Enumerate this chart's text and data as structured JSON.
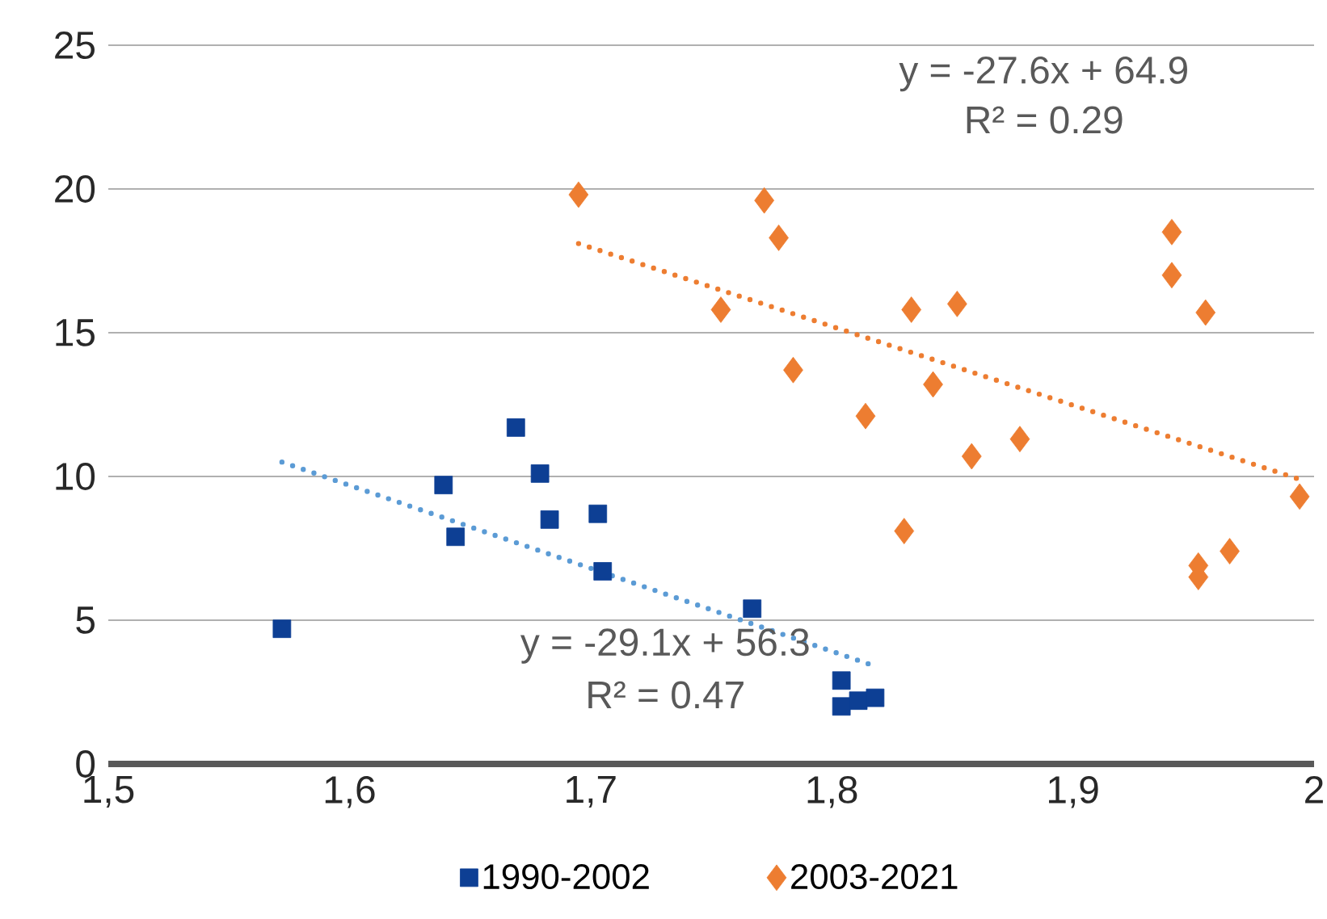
{
  "chart_data": {
    "type": "scatter",
    "xlim": [
      1.5,
      2
    ],
    "ylim": [
      0,
      25
    ],
    "xticks": [
      {
        "value": 1.5,
        "label": "1,5"
      },
      {
        "value": 1.6,
        "label": "1,6"
      },
      {
        "value": 1.7,
        "label": "1,7"
      },
      {
        "value": 1.8,
        "label": "1,8"
      },
      {
        "value": 1.9,
        "label": "1,9"
      },
      2
    ],
    "yticks": [
      0,
      5,
      10,
      15,
      20,
      25
    ],
    "grid": "y",
    "legend": "bottom",
    "series": [
      {
        "name": "1990-2002",
        "color": "#0d3f94",
        "marker": "square",
        "x": [
          1.572,
          1.639,
          1.644,
          1.669,
          1.679,
          1.683,
          1.703,
          1.705,
          1.767,
          1.804,
          1.804,
          1.811,
          1.818
        ],
        "values": [
          4.7,
          9.7,
          7.9,
          11.7,
          10.1,
          8.5,
          8.7,
          6.7,
          5.4,
          2.9,
          2.0,
          2.2,
          2.3
        ]
      },
      {
        "name": "2003-2021",
        "color": "#ed7d31",
        "marker": "diamond",
        "x": [
          1.695,
          1.772,
          1.778,
          1.754,
          1.784,
          1.814,
          1.83,
          1.833,
          1.842,
          1.852,
          1.858,
          1.878,
          1.941,
          1.941,
          1.955,
          1.952,
          1.952,
          1.965,
          1.994
        ],
        "values": [
          19.8,
          19.6,
          18.3,
          15.8,
          13.7,
          12.1,
          8.1,
          15.8,
          13.2,
          16.0,
          10.7,
          11.3,
          18.5,
          17.0,
          15.7,
          6.9,
          6.5,
          7.4,
          9.3
        ]
      },
      {
        "type": "line",
        "color": "#5b9bd5",
        "line_style": "dotted",
        "marker": "none",
        "x": [
          1.572,
          1.818
        ],
        "values": [
          10.5,
          3.4
        ]
      },
      {
        "type": "line",
        "color": "#ed7d31",
        "line_style": "dotted",
        "marker": "none",
        "x": [
          1.695,
          1.994
        ],
        "values": [
          18.1,
          9.9
        ]
      }
    ],
    "annotations": [
      "y = -27.6x + 64.9",
      "R² = 0.29",
      "y = -29.1x + 56.3",
      "R² = 0.47"
    ]
  }
}
